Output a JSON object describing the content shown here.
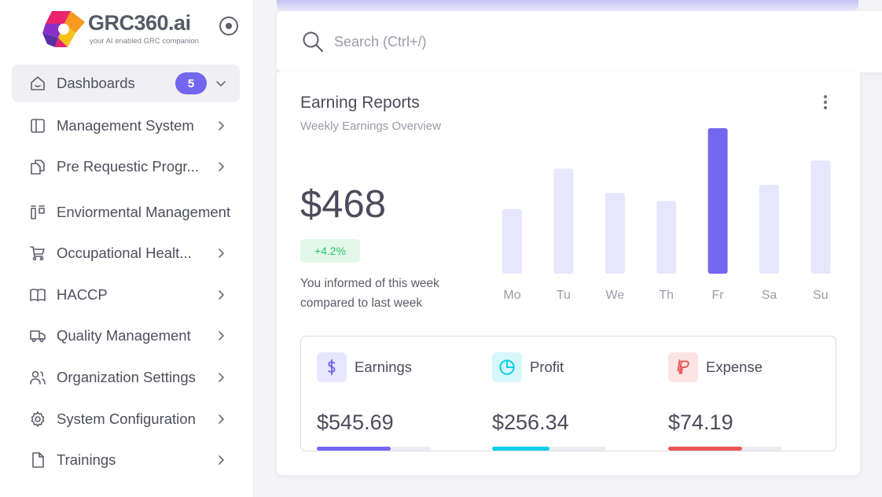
{
  "brand": {
    "name": "GRC360.ai",
    "tagline": "your AI enabled GRC companion"
  },
  "sidebar": {
    "items": [
      {
        "label": "Dashboards",
        "icon": "home-icon",
        "badge": "5",
        "active": true
      },
      {
        "label": "Management System",
        "icon": "layout-sidebar-icon"
      },
      {
        "label": "Pre Requestic Progr...",
        "icon": "files-icon"
      },
      {
        "label": "Enviormental Management",
        "icon": "columns-icon"
      },
      {
        "label": "Occupational Healt...",
        "icon": "shopping-cart-icon"
      },
      {
        "label": "HACCP",
        "icon": "book-icon"
      },
      {
        "label": "Quality Management",
        "icon": "truck-icon"
      },
      {
        "label": "Organization Settings",
        "icon": "users-icon"
      },
      {
        "label": "System Configuration",
        "icon": "gear-icon"
      },
      {
        "label": "Trainings",
        "icon": "file-icon"
      }
    ]
  },
  "search": {
    "placeholder": "Search (Ctrl+/)"
  },
  "earning_report": {
    "title": "Earning Reports",
    "subtitle": "Weekly Earnings Overview",
    "amount": "$468",
    "change": "+4.2%",
    "note": "You informed of this week compared to last week"
  },
  "chart_data": {
    "type": "bar",
    "categories": [
      "Mo",
      "Tu",
      "We",
      "Th",
      "Fr",
      "Sa",
      "Su"
    ],
    "values": [
      40,
      65,
      50,
      45,
      90,
      55,
      70
    ],
    "highlight_index": 4,
    "colors": {
      "bar": "#e8e6fc",
      "highlight": "#7367f0",
      "label": "#9a9ca8"
    }
  },
  "stats": [
    {
      "label": "Earnings",
      "value": "$545.69",
      "progress": 0.65,
      "color": "#7367f0",
      "bg": "#e8e6fc",
      "icon": "dollar-icon"
    },
    {
      "label": "Profit",
      "value": "$256.34",
      "progress": 0.5,
      "color": "#00cfe8",
      "bg": "#d6f7fb",
      "icon": "pie-chart-icon"
    },
    {
      "label": "Expense",
      "value": "$74.19",
      "progress": 0.65,
      "color": "#ea5455",
      "bg": "#fce4e4",
      "icon": "paypal-icon"
    }
  ]
}
